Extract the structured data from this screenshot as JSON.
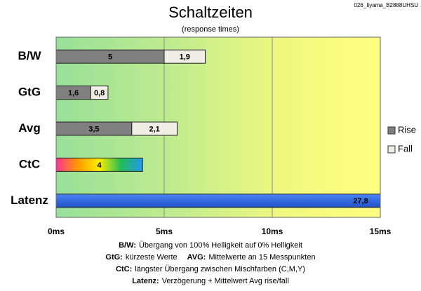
{
  "chart_data": {
    "type": "bar",
    "orientation": "horizontal",
    "stacked": true,
    "title": "Schaltzeiten",
    "subtitle": "(response times)",
    "corner_note": "026_Iiyama_B2888UHSU",
    "categories": [
      "B/W",
      "GtG",
      "Avg",
      "CtC",
      "Latenz"
    ],
    "series": [
      {
        "name": "Rise",
        "color": "#808080",
        "values": [
          5,
          1.6,
          3.5,
          null,
          null
        ],
        "value_labels": [
          "5",
          "1,6",
          "3,5",
          null,
          null
        ]
      },
      {
        "name": "Fall",
        "color": "#f0ede4",
        "values": [
          1.9,
          0.8,
          2.1,
          null,
          null
        ],
        "value_labels": [
          "1,9",
          "0,8",
          "2,1",
          null,
          null
        ]
      }
    ],
    "other_values": [
      null,
      null,
      null,
      4,
      27.8
    ],
    "other_value_labels": [
      null,
      null,
      null,
      "4",
      "27,8"
    ],
    "other_colors": [
      null,
      null,
      null,
      [
        "#ff3399",
        "#ff9900",
        "#ffee00",
        "#22bb55",
        "#2299ee"
      ],
      [
        "#4a86f5",
        "#2050c8"
      ]
    ],
    "xlim": [
      0,
      15
    ],
    "xticks": [
      {
        "value": 0,
        "label": "0ms"
      },
      {
        "value": 5,
        "label": "5ms"
      },
      {
        "value": 10,
        "label": "10ms"
      },
      {
        "value": 15,
        "label": "15ms"
      }
    ],
    "grid": true,
    "legend": "right",
    "notes": [
      [
        {
          "term": "B/W:",
          "text": "Übergang von 100% Helligkeit auf 0% Helligkeit"
        }
      ],
      [
        {
          "term": "GtG:",
          "text": "kürzeste Werte"
        },
        {
          "term": "AVG:",
          "text": "Mittelwerte an 15 Messpunkten"
        }
      ],
      [
        {
          "term": "CtC:",
          "text": "längster Übergang zwischen Mischfarben (C,M,Y)"
        }
      ],
      [
        {
          "term": "Latenz:",
          "text": "Verzögerung + Mittelwert Avg rise/fall"
        }
      ]
    ]
  }
}
